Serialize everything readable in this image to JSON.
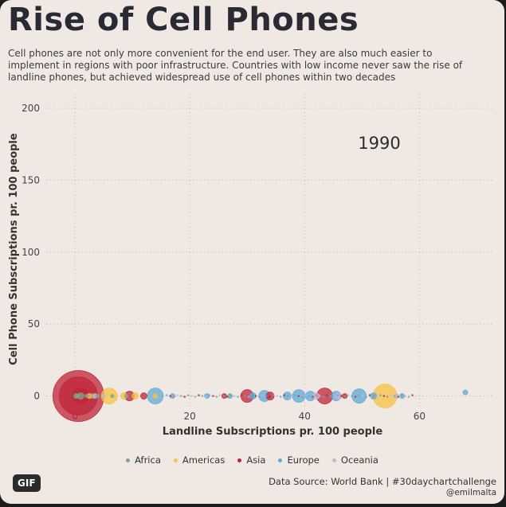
{
  "title": "Rise of Cell Phones",
  "subtitle": "Cell phones are not only more convenient for the end user. They are also much easier to implement in regions with poor infrastructure. Countries with low income never saw the rise of landline phones, but achieved widespread use of cell phones within two decades",
  "badge": "GIF",
  "source": "Data Source: World Bank | #30daychartchallenge",
  "handle": "@emilmalta",
  "chart_data": {
    "type": "scatter",
    "title": "Rise of Cell Phones",
    "xlabel": "Landline Subscriptions pr. 100 people",
    "ylabel": "Cell Phone Subscriptions pr. 100 people",
    "year_label": "1990",
    "xlim": [
      -5,
      73
    ],
    "ylim": [
      -8,
      210
    ],
    "x_ticks": [
      0,
      20,
      40,
      60
    ],
    "y_ticks": [
      0,
      50,
      100,
      150,
      200
    ],
    "grid": true,
    "legend_position": "bottom",
    "colors": {
      "Africa": "#7aa88a",
      "Americas": "#f5c242",
      "Asia": "#c0253a",
      "Europe": "#5fa9d6",
      "Oceania": "#c6b8d1"
    },
    "series": [
      {
        "name": "Africa",
        "points": [
          {
            "x": 0.2,
            "y": 0,
            "r": 3
          },
          {
            "x": 0.5,
            "y": 0,
            "r": 2
          },
          {
            "x": 1.0,
            "y": 0,
            "r": 4
          },
          {
            "x": 2.0,
            "y": 0,
            "r": 2
          },
          {
            "x": 3.0,
            "y": 0,
            "r": 3
          },
          {
            "x": 4.0,
            "y": 0,
            "r": 2
          },
          {
            "x": 6.5,
            "y": 0,
            "r": 2
          },
          {
            "x": 9.0,
            "y": 0,
            "r": 2
          }
        ]
      },
      {
        "name": "Americas",
        "points": [
          {
            "x": 6.0,
            "y": 0,
            "r": 10
          },
          {
            "x": 54.0,
            "y": 0,
            "r": 15
          },
          {
            "x": 10.5,
            "y": 0,
            "r": 4
          },
          {
            "x": 14.0,
            "y": 0,
            "r": 3
          },
          {
            "x": 8.5,
            "y": 0,
            "r": 4
          },
          {
            "x": 2.5,
            "y": 0,
            "r": 3
          }
        ]
      },
      {
        "name": "Asia",
        "points": [
          {
            "x": 0.6,
            "y": 0,
            "r": 32
          },
          {
            "x": 0.6,
            "y": 0,
            "r": 24
          },
          {
            "x": 1.0,
            "y": 0,
            "r": 10
          },
          {
            "x": 9.5,
            "y": 0,
            "r": 6
          },
          {
            "x": 12.0,
            "y": 0,
            "r": 4
          },
          {
            "x": 30.0,
            "y": 0,
            "r": 8
          },
          {
            "x": 34.0,
            "y": 0,
            "r": 5
          },
          {
            "x": 43.5,
            "y": 0,
            "r": 10
          },
          {
            "x": 26.0,
            "y": 0,
            "r": 3
          },
          {
            "x": 47.0,
            "y": 0,
            "r": 3
          }
        ]
      },
      {
        "name": "Europe",
        "points": [
          {
            "x": 14.0,
            "y": 0,
            "r": 10
          },
          {
            "x": 17.0,
            "y": 0,
            "r": 3
          },
          {
            "x": 23.0,
            "y": 0,
            "r": 3
          },
          {
            "x": 27.0,
            "y": 0,
            "r": 3
          },
          {
            "x": 31.0,
            "y": 0,
            "r": 4
          },
          {
            "x": 33.0,
            "y": 0,
            "r": 7
          },
          {
            "x": 37.0,
            "y": 0,
            "r": 5
          },
          {
            "x": 39.0,
            "y": 0,
            "r": 8
          },
          {
            "x": 41.0,
            "y": 0,
            "r": 6
          },
          {
            "x": 45.5,
            "y": 0,
            "r": 6
          },
          {
            "x": 49.5,
            "y": 0,
            "r": 9
          },
          {
            "x": 52.0,
            "y": 0,
            "r": 4
          },
          {
            "x": 57.0,
            "y": 0,
            "r": 3
          },
          {
            "x": 68.0,
            "y": 2.5,
            "r": 3
          }
        ]
      },
      {
        "name": "Oceania",
        "points": [
          {
            "x": 3.5,
            "y": 0,
            "r": 3
          },
          {
            "x": 5.0,
            "y": 0,
            "r": 2
          },
          {
            "x": 42.0,
            "y": 0,
            "r": 4
          },
          {
            "x": 46.0,
            "y": 0,
            "r": 4
          },
          {
            "x": 56.0,
            "y": 0,
            "r": 3
          }
        ]
      }
    ]
  }
}
